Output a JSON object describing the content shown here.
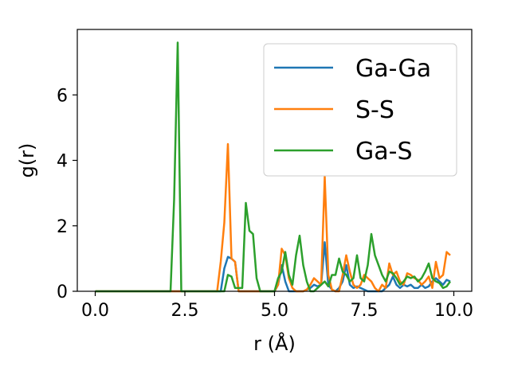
{
  "chart_data": {
    "type": "line",
    "xlabel": "r (Å)",
    "ylabel": "g(r)",
    "xlim": [
      -0.5,
      10.5
    ],
    "ylim": [
      0,
      8.0
    ],
    "xticks": [
      0.0,
      2.5,
      5.0,
      7.5,
      10.0
    ],
    "xtick_labels": [
      "0.0",
      "2.5",
      "5.0",
      "7.5",
      "10.0"
    ],
    "yticks": [
      0,
      2,
      4,
      6
    ],
    "ytick_labels": [
      "0",
      "2",
      "4",
      "6"
    ],
    "grid": false,
    "legend_position": "top-right",
    "series": [
      {
        "name": "Ga-Ga",
        "color": "#1f77b4",
        "x": [
          0.0,
          3.4,
          3.5,
          3.6,
          3.7,
          3.8,
          3.9,
          4.0,
          4.6,
          4.9,
          5.0,
          5.1,
          5.2,
          5.3,
          5.4,
          5.6,
          5.8,
          5.9,
          6.0,
          6.1,
          6.2,
          6.3,
          6.4,
          6.5,
          6.6,
          6.7,
          6.8,
          6.9,
          7.0,
          7.1,
          7.2,
          7.3,
          7.4,
          7.5,
          7.6,
          7.8,
          8.0,
          8.1,
          8.2,
          8.3,
          8.4,
          8.5,
          8.6,
          8.7,
          8.8,
          8.9,
          9.0,
          9.1,
          9.2,
          9.3,
          9.4,
          9.5,
          9.6,
          9.7,
          9.8,
          9.9
        ],
        "y": [
          0,
          0,
          0,
          0.7,
          1.05,
          1.0,
          0.9,
          0,
          0,
          0,
          0,
          0.2,
          0.8,
          0.3,
          0,
          0,
          0,
          0.05,
          0.1,
          0.2,
          0.15,
          0.2,
          1.5,
          0.2,
          0.05,
          0,
          0.1,
          0.3,
          0.8,
          0.2,
          0.1,
          0.15,
          0.1,
          0.05,
          0,
          0,
          0,
          0.1,
          0.2,
          0.45,
          0.2,
          0.1,
          0.2,
          0.15,
          0.2,
          0.1,
          0.1,
          0.2,
          0.1,
          0.15,
          0.3,
          0.4,
          0.3,
          0.2,
          0.35,
          0.3
        ]
      },
      {
        "name": "S-S",
        "color": "#ff7f0e",
        "x": [
          0.0,
          3.4,
          3.5,
          3.6,
          3.7,
          3.8,
          3.9,
          4.0,
          4.9,
          5.0,
          5.1,
          5.2,
          5.3,
          5.4,
          5.5,
          5.6,
          5.8,
          5.9,
          6.0,
          6.1,
          6.2,
          6.3,
          6.4,
          6.5,
          6.6,
          6.7,
          6.8,
          6.9,
          7.0,
          7.1,
          7.2,
          7.3,
          7.4,
          7.5,
          7.6,
          7.7,
          7.8,
          7.9,
          8.0,
          8.1,
          8.2,
          8.3,
          8.4,
          8.5,
          8.6,
          8.7,
          8.8,
          8.9,
          9.0,
          9.1,
          9.2,
          9.3,
          9.4,
          9.5,
          9.6,
          9.7,
          9.8,
          9.9
        ],
        "y": [
          0,
          0,
          0.9,
          2.1,
          4.5,
          1.0,
          0.9,
          0,
          0,
          0,
          0.2,
          1.3,
          1.1,
          0.4,
          0.1,
          0,
          0,
          0.05,
          0.2,
          0.4,
          0.3,
          0.2,
          3.5,
          0.5,
          0.05,
          0,
          0,
          0.5,
          1.1,
          0.6,
          0.2,
          0.1,
          0.2,
          0.5,
          0.4,
          0.3,
          0.1,
          0,
          0.2,
          0.1,
          0.85,
          0.5,
          0.6,
          0.3,
          0.2,
          0.55,
          0.5,
          0.4,
          0.35,
          0.2,
          0.3,
          0.45,
          0.1,
          0.9,
          0.4,
          0.5,
          1.2,
          1.1
        ]
      },
      {
        "name": "Ga-S",
        "color": "#2ca02c",
        "x": [
          0.0,
          2.1,
          2.2,
          2.3,
          2.4,
          3.6,
          3.7,
          3.8,
          3.9,
          4.1,
          4.2,
          4.3,
          4.4,
          4.5,
          4.6,
          5.0,
          5.1,
          5.2,
          5.3,
          5.4,
          5.5,
          5.6,
          5.7,
          5.8,
          5.9,
          6.0,
          6.1,
          6.2,
          6.3,
          6.4,
          6.5,
          6.6,
          6.7,
          6.8,
          6.9,
          7.0,
          7.1,
          7.2,
          7.3,
          7.4,
          7.5,
          7.6,
          7.7,
          7.8,
          7.9,
          8.0,
          8.1,
          8.2,
          8.3,
          8.4,
          8.5,
          8.6,
          8.7,
          8.8,
          8.9,
          9.0,
          9.1,
          9.2,
          9.3,
          9.4,
          9.5,
          9.6,
          9.7,
          9.8,
          9.9
        ],
        "y": [
          0,
          0,
          2.8,
          7.6,
          0,
          0,
          0.5,
          0.45,
          0.1,
          0.1,
          2.7,
          1.85,
          1.75,
          0.4,
          0,
          0,
          0.4,
          0.6,
          1.2,
          0.5,
          0.2,
          1.1,
          1.7,
          0.8,
          0.3,
          0,
          0,
          0.1,
          0.2,
          0.3,
          0.15,
          0.5,
          0.5,
          1.0,
          0.6,
          0.5,
          0.3,
          0.4,
          1.1,
          0.4,
          0.3,
          0.8,
          1.75,
          1.1,
          0.8,
          0.5,
          0.3,
          0.6,
          0.55,
          0.4,
          0.2,
          0.3,
          0.45,
          0.4,
          0.45,
          0.3,
          0.4,
          0.6,
          0.85,
          0.4,
          0.3,
          0.25,
          0.1,
          0.15,
          0.3
        ]
      }
    ]
  }
}
